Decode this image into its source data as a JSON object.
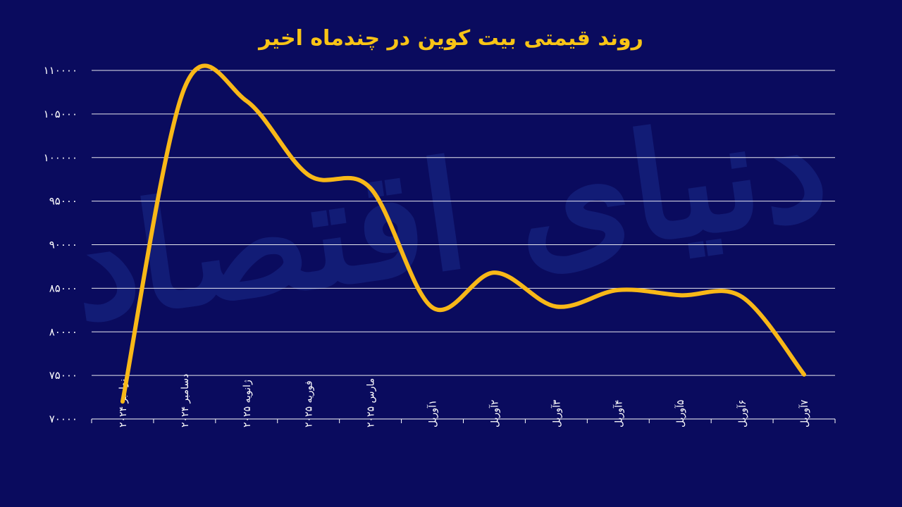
{
  "chart_data": {
    "type": "line",
    "title": "روند قیمتی بیت کوین در چندماه اخیر",
    "watermark": "دنیای اقتصاد",
    "categories": [
      "نوامبر ۲۰۲۴",
      "دسامبر ۲۰۲۴",
      "ژانویه ۲۰۲۵",
      "فوریه ۲۰۲۵",
      "مارس ۲۰۲۵",
      "۱آوریل",
      "۲آوریل",
      "۳آوریل",
      "۴آوریل",
      "۵آوریل",
      "۶آوریل",
      "۷آوریل"
    ],
    "series": [
      {
        "values": [
          72000,
          108000,
          106500,
          98000,
          96500,
          82800,
          86800,
          82900,
          84800,
          84200,
          84000,
          75100
        ]
      }
    ],
    "y_ticks": [
      "۷۰۰۰۰",
      "۷۵۰۰۰",
      "۸۰۰۰۰",
      "۸۵۰۰۰",
      "۹۰۰۰۰",
      "۹۵۰۰۰",
      "۱۰۰۰۰۰",
      "۱۰۵۰۰۰",
      "۱۱۰۰۰۰"
    ],
    "ylim": [
      70000,
      110000
    ],
    "grid": true,
    "legend": "none",
    "colors": {
      "background": "#0a0b5e",
      "line": "#f8b818",
      "title": "#f8c416",
      "grid": "#ffffff"
    }
  }
}
